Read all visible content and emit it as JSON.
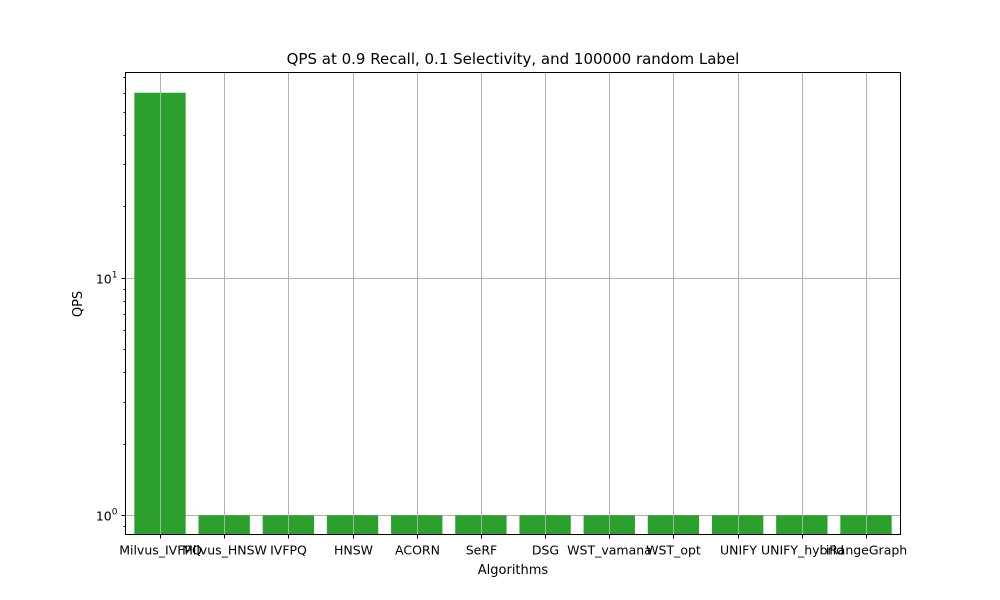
{
  "chart_data": {
    "type": "bar",
    "title": "QPS at 0.9 Recall, 0.1 Selectivity, and 100000 random Label",
    "xlabel": "Algorithms",
    "ylabel": "QPS",
    "yscale": "log",
    "ylim": [
      0.83,
      73
    ],
    "grid": true,
    "bar_color": "#2ca02c",
    "categories": [
      "Milvus_IVFPQ",
      "Milvus_HNSW",
      "IVFPQ",
      "HNSW",
      "ACORN",
      "SeRF",
      "DSG",
      "WST_vamana",
      "WST_opt",
      "UNIFY",
      "UNIFY_hybrid",
      "iRangeGraph"
    ],
    "values": [
      60,
      1,
      1,
      1,
      1,
      1,
      1,
      1,
      1,
      1,
      1,
      1
    ],
    "yticks": [
      {
        "value": 1,
        "base": "10",
        "exp": "0"
      },
      {
        "value": 10,
        "base": "10",
        "exp": "1"
      }
    ]
  }
}
